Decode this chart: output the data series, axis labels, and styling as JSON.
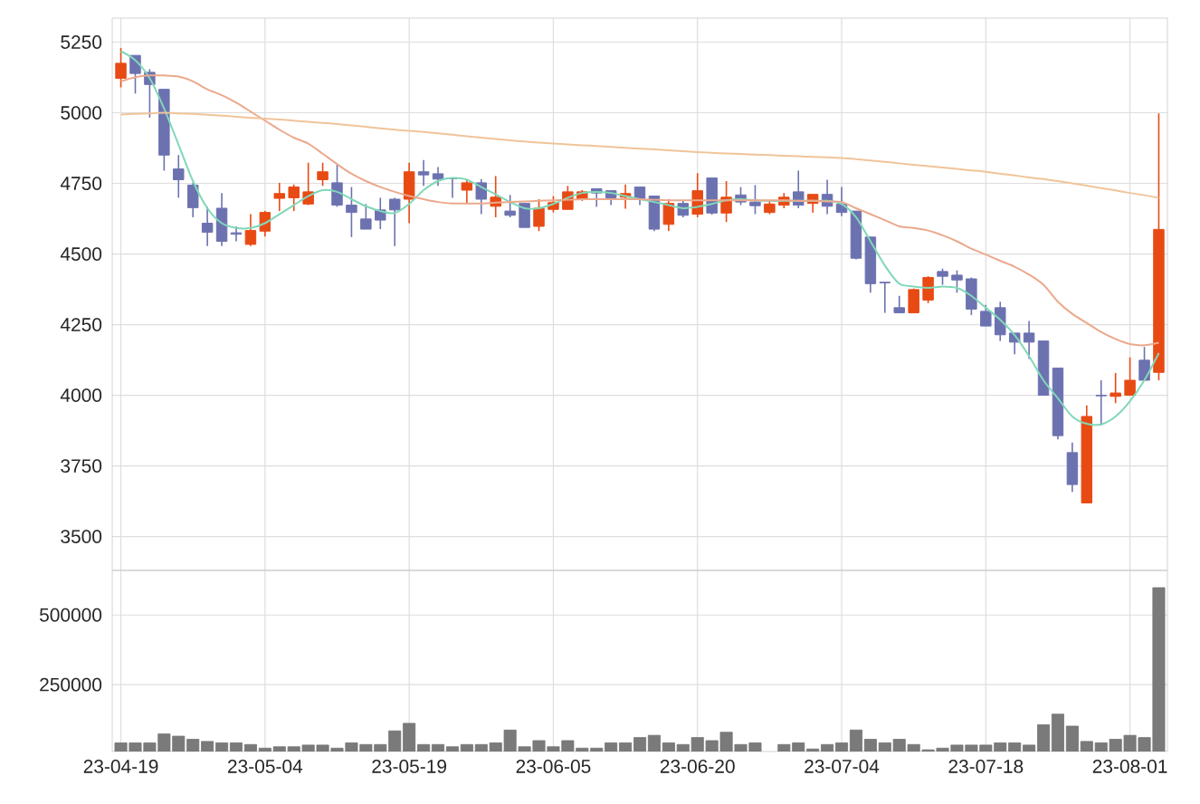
{
  "chart_data": [
    {
      "type": "candlestick",
      "categories": [
        null,
        null,
        null,
        null,
        null,
        null,
        null,
        null,
        null,
        null,
        null,
        null,
        null,
        null,
        null,
        null,
        null,
        null,
        null,
        null,
        null,
        null,
        null,
        null,
        null,
        null,
        null,
        null,
        null,
        null,
        null,
        null,
        null,
        null,
        null,
        null,
        null,
        null,
        null,
        null,
        null,
        null,
        null,
        null,
        null,
        null,
        null,
        null,
        null,
        null,
        null,
        null,
        null,
        null,
        null,
        null,
        null,
        null,
        null,
        null,
        null,
        null,
        null,
        null,
        null,
        null,
        null,
        null,
        null,
        null,
        null,
        null,
        null
      ],
      "ohlc": [
        [
          5122,
          5229,
          5090,
          5175
        ],
        [
          5203,
          5203,
          5068,
          5139
        ],
        [
          5143,
          5154,
          4983,
          5100
        ],
        [
          5083,
          5083,
          4795,
          4850
        ],
        [
          4801,
          4850,
          4699,
          4763
        ],
        [
          4744,
          4752,
          4630,
          4664
        ],
        [
          4609,
          4667,
          4528,
          4577
        ],
        [
          4662,
          4716,
          4528,
          4545
        ],
        [
          4575,
          4598,
          4545,
          4570
        ],
        [
          4534,
          4641,
          4528,
          4583
        ],
        [
          4581,
          4652,
          4562,
          4647
        ],
        [
          4697,
          4752,
          4652,
          4714
        ],
        [
          4699,
          4746,
          4652,
          4737
        ],
        [
          4677,
          4823,
          4673,
          4720
        ],
        [
          4763,
          4823,
          4741,
          4791
        ],
        [
          4752,
          4816,
          4667,
          4673
        ],
        [
          4673,
          4737,
          4560,
          4647
        ],
        [
          4624,
          4677,
          4588,
          4588
        ],
        [
          4656,
          4699,
          4588,
          4620
        ],
        [
          4694,
          4699,
          4528,
          4656
        ],
        [
          4694,
          4823,
          4609,
          4791
        ],
        [
          4791,
          4833,
          4741,
          4780
        ],
        [
          4784,
          4808,
          4741,
          4765
        ],
        [
          4769,
          4771,
          4699,
          4767
        ],
        [
          4726,
          4765,
          4677,
          4752
        ],
        [
          4752,
          4765,
          4641,
          4694
        ],
        [
          4669,
          4776,
          4630,
          4701
        ],
        [
          4652,
          4709,
          4630,
          4637
        ],
        [
          4679,
          4679,
          4594,
          4594
        ],
        [
          4598,
          4694,
          4581,
          4662
        ],
        [
          4658,
          4705,
          4647,
          4682
        ],
        [
          4658,
          4741,
          4658,
          4720
        ],
        [
          4694,
          4726,
          4688,
          4720
        ],
        [
          4731,
          4731,
          4667,
          4716
        ],
        [
          4724,
          4724,
          4673,
          4699
        ],
        [
          4701,
          4746,
          4660,
          4714
        ],
        [
          4737,
          4737,
          4673,
          4694
        ],
        [
          4705,
          4705,
          4581,
          4588
        ],
        [
          4605,
          4694,
          4581,
          4679
        ],
        [
          4679,
          4688,
          4630,
          4637
        ],
        [
          4641,
          4786,
          4630,
          4724
        ],
        [
          4769,
          4769,
          4639,
          4645
        ],
        [
          4645,
          4758,
          4613,
          4701
        ],
        [
          4709,
          4737,
          4673,
          4684
        ],
        [
          4684,
          4744,
          4641,
          4671
        ],
        [
          4647,
          4688,
          4641,
          4677
        ],
        [
          4673,
          4716,
          4662,
          4701
        ],
        [
          4720,
          4795,
          4662,
          4673
        ],
        [
          4679,
          4711,
          4647,
          4711
        ],
        [
          4711,
          4763,
          4641,
          4669
        ],
        [
          4677,
          4737,
          4634,
          4647
        ],
        [
          4652,
          4652,
          4481,
          4485
        ],
        [
          4560,
          4560,
          4363,
          4395
        ],
        [
          4400,
          4400,
          4292,
          4398
        ],
        [
          4310,
          4352,
          4292,
          4292
        ],
        [
          4292,
          4378,
          4292,
          4374
        ],
        [
          4337,
          4421,
          4326,
          4417
        ],
        [
          4438,
          4448,
          4391,
          4421
        ],
        [
          4425,
          4442,
          4363,
          4408
        ],
        [
          4412,
          4417,
          4284,
          4305
        ],
        [
          4297,
          4320,
          4245,
          4245
        ],
        [
          4310,
          4331,
          4192,
          4214
        ],
        [
          4220,
          4220,
          4145,
          4188
        ],
        [
          4220,
          4263,
          4128,
          4188
        ],
        [
          4192,
          4192,
          4000,
          4000
        ],
        [
          4096,
          4096,
          3844,
          3857
        ],
        [
          3797,
          3833,
          3658,
          3684
        ],
        [
          3619,
          3964,
          3619,
          3925
        ],
        [
          4000,
          4053,
          3893,
          3998
        ],
        [
          3996,
          4079,
          3972,
          4008
        ],
        [
          4000,
          4134,
          4000,
          4053
        ],
        [
          4124,
          4171,
          4053,
          4053
        ],
        [
          4081,
          4998,
          4053,
          4587
        ]
      ],
      "colors": [
        "#e84a14",
        "#6c72b0",
        "#6c72b0",
        "#6c72b0",
        "#6c72b0",
        "#6c72b0",
        "#6c72b0",
        "#6c72b0",
        "#6c72b0",
        "#e84a14",
        "#e84a14",
        "#e84a14",
        "#e84a14",
        "#e84a14",
        "#e84a14",
        "#6c72b0",
        "#6c72b0",
        "#6c72b0",
        "#6c72b0",
        "#6c72b0",
        "#e84a14",
        "#6c72b0",
        "#6c72b0",
        "#6c72b0",
        "#e84a14",
        "#6c72b0",
        "#e84a14",
        "#6c72b0",
        "#6c72b0",
        "#e84a14",
        "#e84a14",
        "#e84a14",
        "#e84a14",
        "#6c72b0",
        "#6c72b0",
        "#e84a14",
        "#6c72b0",
        "#6c72b0",
        "#e84a14",
        "#6c72b0",
        "#e84a14",
        "#6c72b0",
        "#e84a14",
        "#6c72b0",
        "#6c72b0",
        "#e84a14",
        "#e84a14",
        "#6c72b0",
        "#e84a14",
        "#6c72b0",
        "#6c72b0",
        "#6c72b0",
        "#6c72b0",
        "#6c72b0",
        "#6c72b0",
        "#e84a14",
        "#e84a14",
        "#6c72b0",
        "#6c72b0",
        "#6c72b0",
        "#6c72b0",
        "#6c72b0",
        "#6c72b0",
        "#6c72b0",
        "#6c72b0",
        "#6c72b0",
        "#6c72b0",
        "#e84a14",
        "#6c72b0",
        "#e84a14",
        "#e84a14",
        "#6c72b0",
        "#e84a14"
      ],
      "series": [
        {
          "type": "line",
          "color": "#80d8b8",
          "values": [
            5218,
            5186,
            5122,
            5015,
            4887,
            4758,
            4662,
            4609,
            4592,
            4592,
            4609,
            4641,
            4673,
            4705,
            4726,
            4720,
            4694,
            4669,
            4652,
            4645,
            4677,
            4726,
            4758,
            4769,
            4763,
            4737,
            4711,
            4684,
            4662,
            4662,
            4677,
            4699,
            4716,
            4720,
            4716,
            4705,
            4694,
            4684,
            4673,
            4662,
            4667,
            4677,
            4690,
            4694,
            4690,
            4688,
            4688,
            4688,
            4688,
            4688,
            4677,
            4630,
            4545,
            4459,
            4395,
            4385,
            4380,
            4385,
            4380,
            4352,
            4310,
            4267,
            4213,
            4139,
            4053,
            3989,
            3925,
            3899,
            3897,
            3925,
            3979,
            4053,
            4149
          ]
        },
        {
          "type": "line",
          "color": "#eba98c",
          "values": [
            5111,
            5126,
            5132,
            5132,
            5128,
            5111,
            5083,
            5062,
            5036,
            5004,
            4972,
            4940,
            4912,
            4891,
            4855,
            4818,
            4784,
            4758,
            4737,
            4720,
            4705,
            4694,
            4684,
            4679,
            4679,
            4679,
            4682,
            4684,
            4686,
            4688,
            4690,
            4692,
            4694,
            4694,
            4694,
            4694,
            4694,
            4692,
            4690,
            4690,
            4690,
            4690,
            4690,
            4690,
            4690,
            4690,
            4690,
            4688,
            4688,
            4686,
            4684,
            4662,
            4641,
            4620,
            4598,
            4592,
            4583,
            4566,
            4545,
            4519,
            4498,
            4476,
            4455,
            4427,
            4391,
            4331,
            4288,
            4256,
            4224,
            4199,
            4181,
            4177,
            4186
          ]
        },
        {
          "type": "line",
          "color": "#f0c49a",
          "values": [
            4994,
            4996,
            4998,
            5000,
            4998,
            4996,
            4993,
            4990,
            4986,
            4982,
            4979,
            4976,
            4972,
            4968,
            4964,
            4960,
            4955,
            4950,
            4945,
            4940,
            4936,
            4932,
            4927,
            4922,
            4917,
            4912,
            4907,
            4902,
            4898,
            4894,
            4891,
            4888,
            4885,
            4882,
            4879,
            4876,
            4873,
            4870,
            4867,
            4864,
            4861,
            4858,
            4856,
            4854,
            4852,
            4850,
            4848,
            4846,
            4844,
            4842,
            4840,
            4836,
            4831,
            4826,
            4821,
            4816,
            4811,
            4806,
            4801,
            4796,
            4791,
            4784,
            4778,
            4771,
            4765,
            4758,
            4750,
            4742,
            4733,
            4725,
            4716,
            4708,
            4699
          ]
        }
      ],
      "ylim": [
        3380,
        5335
      ],
      "yticks": [
        3500,
        3750,
        4000,
        4250,
        4500,
        4750,
        5000,
        5250
      ],
      "grid": true,
      "tick_labels": "y"
    },
    {
      "type": "bar",
      "categories": [
        "23-04-19",
        null,
        null,
        null,
        null,
        null,
        null,
        null,
        null,
        null,
        "23-05-04",
        null,
        null,
        null,
        null,
        null,
        null,
        null,
        null,
        null,
        "23-05-19",
        null,
        null,
        null,
        null,
        null,
        null,
        null,
        null,
        null,
        "23-06-05",
        null,
        null,
        null,
        null,
        null,
        null,
        null,
        null,
        null,
        "23-06-20",
        null,
        null,
        null,
        null,
        null,
        null,
        null,
        null,
        null,
        "23-07-04",
        null,
        null,
        null,
        null,
        null,
        null,
        null,
        null,
        null,
        "23-07-18",
        null,
        null,
        null,
        null,
        null,
        null,
        null,
        null,
        null,
        "23-08-01",
        null,
        null
      ],
      "values": [
        41000,
        41000,
        41000,
        73000,
        65000,
        54000,
        46000,
        41000,
        41000,
        35000,
        22000,
        27000,
        27000,
        33000,
        33000,
        22000,
        41000,
        35000,
        35000,
        84000,
        111000,
        35000,
        35000,
        27000,
        35000,
        35000,
        41000,
        87000,
        27000,
        49000,
        27000,
        49000,
        22000,
        22000,
        41000,
        41000,
        60000,
        68000,
        41000,
        35000,
        60000,
        49000,
        79000,
        35000,
        41000,
        null,
        35000,
        41000,
        19000,
        35000,
        41000,
        87000,
        54000,
        41000,
        54000,
        35000,
        16000,
        22000,
        33000,
        33000,
        33000,
        41000,
        41000,
        33000,
        106000,
        144000,
        101000,
        46000,
        41000,
        54000,
        68000,
        60000,
        598000
      ],
      "color": "#7a7a7a",
      "ylim": [
        10000,
        660000
      ],
      "yticks": [
        250000,
        500000
      ],
      "grid": true
    }
  ]
}
